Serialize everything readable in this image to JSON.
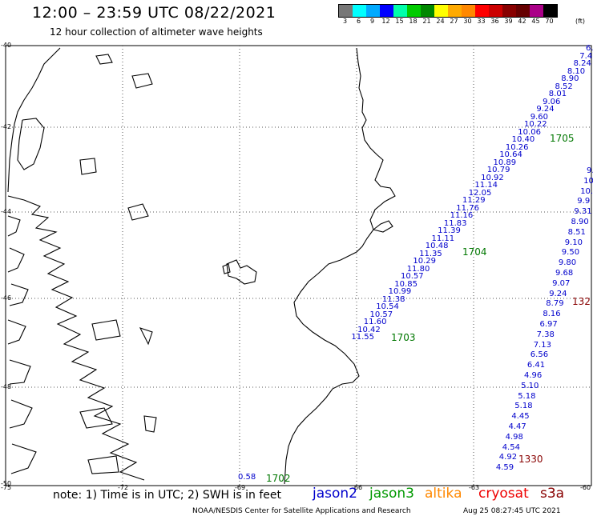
{
  "header": {
    "title": "12:00 – 23:59 UTC 08/22/2021",
    "subtitle": "12 hour collection of altimeter wave heights"
  },
  "scale": {
    "colors": [
      "#777777",
      "#00ffff",
      "#00aaff",
      "#0000ff",
      "#00ffaa",
      "#00cc00",
      "#008800",
      "#ffff00",
      "#ffaa00",
      "#ff8800",
      "#ff0000",
      "#cc0000",
      "#880000",
      "#660000",
      "#aa0088",
      "#000000"
    ],
    "labels": [
      "3",
      "6",
      "9",
      "12",
      "15",
      "18",
      "21",
      "24",
      "27",
      "30",
      "33",
      "36",
      "39",
      "42",
      "45",
      "70"
    ],
    "unit": "(ft)"
  },
  "axes": {
    "lat_labels": [
      "-40",
      "-42",
      "-44",
      "-46",
      "-48",
      "-50"
    ],
    "lon_labels": [
      "-75",
      "-72",
      "-69",
      "-66",
      "-63",
      "-60"
    ]
  },
  "tracks": [
    {
      "satellite": "jason2",
      "color": "#0000cc",
      "values": [
        "6.",
        "7.4",
        "8.24",
        "8.10",
        "8.90",
        "8.52",
        "8.01",
        "9.06",
        "9.24",
        "9.60",
        "10.22",
        "10.06",
        "10.40",
        "10.26",
        "10.64",
        "10.89",
        "10.79",
        "10.92",
        "11.14",
        "12.05",
        "11.29",
        "11.76",
        "11.16",
        "11.83",
        "11.39",
        "11.11",
        "10.48",
        "11.35",
        "10.29",
        "11.80",
        "10.57",
        "10.85",
        "10.99",
        "11.38",
        "10.54",
        "10.57",
        "11.60",
        "10.42",
        "11.55"
      ]
    },
    {
      "satellite": "jason2",
      "color": "#0000cc",
      "values": [
        "9.",
        "10",
        "10.",
        "9.9",
        "9.31",
        "8.90",
        "8.51",
        "9.10",
        "9.50",
        "9.80",
        "9.68",
        "9.07",
        "9.24",
        "8.79",
        "8.16",
        "6.97",
        "7.38",
        "7.13",
        "6.56",
        "6.41",
        "4.96",
        "5.10",
        "5.18",
        "5.18",
        "4.45",
        "4.47",
        "4.98",
        "4.54",
        "4.92",
        "4.59"
      ]
    },
    {
      "satellite": "jason2",
      "color": "#0000cc",
      "values": [
        "0.58"
      ]
    }
  ],
  "time_labels": [
    {
      "text": "1705",
      "color": "#007700"
    },
    {
      "text": "1704",
      "color": "#007700"
    },
    {
      "text": "1703",
      "color": "#007700"
    },
    {
      "text": "1702",
      "color": "#007700"
    },
    {
      "text": "132",
      "color": "#880000"
    },
    {
      "text": "1330",
      "color": "#880000"
    }
  ],
  "footer": {
    "note": "note: 1) Time is in UTC; 2) SWH is in feet",
    "legend": [
      {
        "name": "jason2",
        "color": "#0000cc"
      },
      {
        "name": "jason3",
        "color": "#009900"
      },
      {
        "name": "altika",
        "color": "#ff8800"
      },
      {
        "name": "cryosat",
        "color": "#ee0000"
      },
      {
        "name": "s3a",
        "color": "#880000"
      }
    ],
    "credit": "NOAA/NESDIS Center for Satellite Applications and Research",
    "timestamp": "Aug 25 08:27:45 UTC 2021"
  }
}
